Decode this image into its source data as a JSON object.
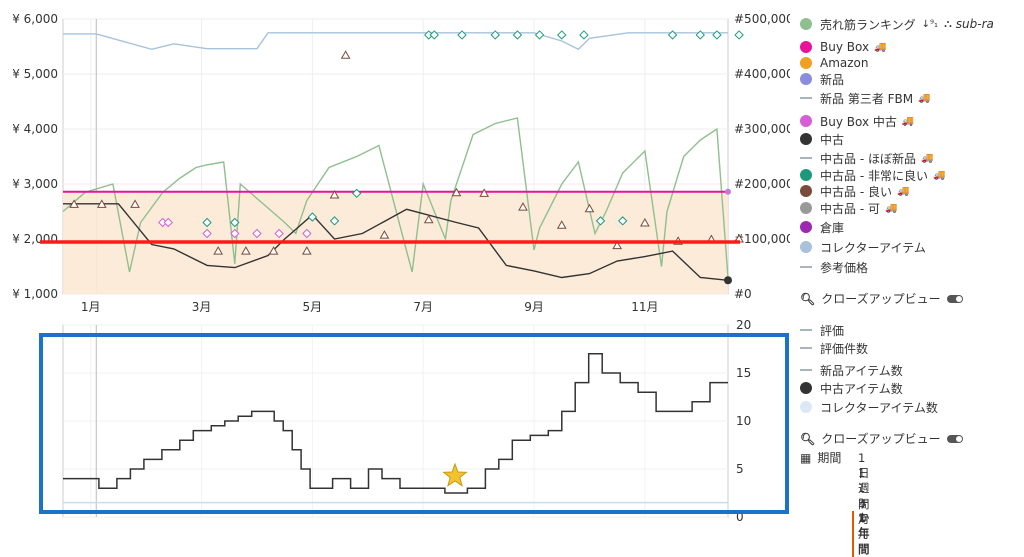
{
  "chart_data": [
    {
      "type": "line",
      "left_axis_ticks": [
        "¥ 1,000",
        "¥ 2,000",
        "¥ 3,000",
        "¥ 4,000",
        "¥ 5,000",
        "¥ 6,000"
      ],
      "right_axis_ticks": [
        "#0",
        "#100,000",
        "#200,000",
        "#300,000",
        "#400,000",
        "#500,000"
      ],
      "x_tick_labels": [
        "1月",
        "3月",
        "5月",
        "7月",
        "9月",
        "11月"
      ],
      "ylim_left": [
        1000,
        6000
      ],
      "ylim_right": [
        0,
        500000
      ],
      "series": [
        {
          "name": "売れ筋ランキング",
          "color": "#8fbf8f",
          "axis": "right",
          "points": [
            [
              0,
              150000
            ],
            [
              0.4,
              185000
            ],
            [
              0.9,
              200000
            ],
            [
              1.2,
              40000
            ],
            [
              1.4,
              130000
            ],
            [
              1.8,
              185000
            ],
            [
              2.1,
              210000
            ],
            [
              2.4,
              230000
            ],
            [
              2.6,
              235000
            ],
            [
              2.9,
              240000
            ],
            [
              3.1,
              55000
            ],
            [
              3.2,
              200000
            ],
            [
              4.0,
              130000
            ],
            [
              4.2,
              110000
            ],
            [
              4.4,
              170000
            ],
            [
              4.8,
              230000
            ],
            [
              5.3,
              250000
            ],
            [
              5.7,
              270000
            ],
            [
              6.3,
              40000
            ],
            [
              6.5,
              200000
            ],
            [
              6.9,
              100000
            ],
            [
              7.0,
              170000
            ],
            [
              7.4,
              290000
            ],
            [
              7.8,
              310000
            ],
            [
              8.2,
              320000
            ],
            [
              8.5,
              80000
            ],
            [
              8.6,
              120000
            ],
            [
              9.0,
              200000
            ],
            [
              9.3,
              240000
            ],
            [
              9.6,
              110000
            ],
            [
              9.8,
              150000
            ],
            [
              10.1,
              220000
            ],
            [
              10.5,
              260000
            ],
            [
              10.8,
              50000
            ],
            [
              10.9,
              150000
            ],
            [
              11.2,
              250000
            ],
            [
              11.5,
              280000
            ],
            [
              11.8,
              300000
            ],
            [
              12.0,
              30000
            ]
          ]
        },
        {
          "name": "Buy Box",
          "color": "#e6149b",
          "axis": "left",
          "points": [
            [
              0,
              2860
            ],
            [
              12,
              2860
            ]
          ]
        },
        {
          "name": "中古",
          "color": "#333333",
          "axis": "left",
          "points": [
            [
              0,
              2640
            ],
            [
              1.0,
              2640
            ],
            [
              1.6,
              1900
            ],
            [
              2.0,
              1820
            ],
            [
              2.6,
              1520
            ],
            [
              3.1,
              1480
            ],
            [
              3.7,
              1700
            ],
            [
              4.0,
              2000
            ],
            [
              4.5,
              2440
            ],
            [
              4.9,
              2000
            ],
            [
              5.4,
              2100
            ],
            [
              6.2,
              2540
            ],
            [
              7.1,
              2300
            ],
            [
              7.5,
              2200
            ],
            [
              8.0,
              1520
            ],
            [
              8.5,
              1420
            ],
            [
              9.0,
              1300
            ],
            [
              9.5,
              1370
            ],
            [
              10.0,
              1600
            ],
            [
              10.5,
              1680
            ],
            [
              11.0,
              1780
            ],
            [
              11.5,
              1300
            ],
            [
              12.0,
              1250
            ]
          ]
        },
        {
          "name": "コレクターアイテム",
          "color": "#a8c2dc",
          "axis": "right",
          "points": [
            [
              0,
              473000
            ],
            [
              0.6,
              473000
            ],
            [
              1.6,
              445000
            ],
            [
              2.0,
              455000
            ],
            [
              2.6,
              446000
            ],
            [
              3.5,
              446000
            ],
            [
              3.7,
              475000
            ],
            [
              5.2,
              475000
            ],
            [
              6.5,
              475000
            ],
            [
              7.5,
              475000
            ],
            [
              8.5,
              475000
            ],
            [
              9.0,
              460000
            ],
            [
              9.3,
              445000
            ],
            [
              9.5,
              465000
            ],
            [
              10.2,
              475000
            ],
            [
              12.0,
              475000
            ]
          ]
        }
      ],
      "markers": [
        {
          "name": "中古品 - 良い",
          "symbol": "triangle",
          "color": "#7a4a3a",
          "points": [
            [
              0.2,
              2630
            ],
            [
              0.7,
              2630
            ],
            [
              1.3,
              2630
            ],
            [
              2.8,
              1780
            ],
            [
              3.3,
              1780
            ],
            [
              3.8,
              1780
            ],
            [
              4.4,
              1780
            ],
            [
              4.9,
              2800
            ],
            [
              5.8,
              2070
            ],
            [
              6.6,
              2350
            ],
            [
              7.1,
              2840
            ],
            [
              7.6,
              2830
            ],
            [
              8.3,
              2580
            ],
            [
              9.0,
              2250
            ],
            [
              9.5,
              2550
            ],
            [
              10.0,
              1880
            ],
            [
              10.5,
              2290
            ],
            [
              11.1,
              1960
            ],
            [
              11.7,
              1990
            ],
            [
              12.2,
              2000
            ],
            [
              5.1,
              5340
            ]
          ]
        },
        {
          "name": "Buy Box 中古",
          "symbol": "diamond",
          "color": "#d55fd5",
          "points": [
            [
              1.8,
              2300
            ],
            [
              1.9,
              2300
            ],
            [
              2.6,
              2100
            ],
            [
              3.1,
              2100
            ],
            [
              3.5,
              2100
            ],
            [
              3.9,
              2100
            ],
            [
              4.4,
              2100
            ]
          ]
        },
        {
          "name": "中古品 - 非常に良い",
          "symbol": "diamond",
          "color": "#1a9a7a",
          "points": [
            [
              2.6,
              2300
            ],
            [
              3.1,
              2300
            ],
            [
              4.5,
              2400
            ],
            [
              4.9,
              2330
            ],
            [
              5.3,
              2830
            ],
            [
              6.6,
              5710
            ],
            [
              6.7,
              5710
            ],
            [
              7.2,
              5710
            ],
            [
              7.8,
              5710
            ],
            [
              8.2,
              5710
            ],
            [
              8.6,
              5710
            ],
            [
              9.0,
              5710
            ],
            [
              9.4,
              5710
            ],
            [
              9.7,
              2330
            ],
            [
              10.1,
              2330
            ],
            [
              11.0,
              5710
            ],
            [
              11.5,
              5710
            ],
            [
              11.8,
              5710
            ],
            [
              12.2,
              5710
            ]
          ]
        }
      ]
    },
    {
      "type": "line",
      "right_axis_ticks": [
        "0",
        "5",
        "10",
        "15",
        "20"
      ],
      "ylim": [
        0,
        20
      ],
      "series": [
        {
          "name": "中古アイテム数",
          "color": "#333333",
          "points": [
            [
              0,
              4
            ],
            [
              0.6,
              4
            ],
            [
              0.8,
              3
            ],
            [
              1.2,
              4
            ],
            [
              1.5,
              5
            ],
            [
              1.8,
              6
            ],
            [
              2.2,
              7
            ],
            [
              2.6,
              8
            ],
            [
              2.9,
              9
            ],
            [
              3.3,
              9.5
            ],
            [
              3.6,
              10
            ],
            [
              3.9,
              10.5
            ],
            [
              4.2,
              11
            ],
            [
              4.7,
              10
            ],
            [
              4.9,
              9
            ],
            [
              5.1,
              7
            ],
            [
              5.3,
              5
            ],
            [
              5.5,
              3
            ],
            [
              6.0,
              4
            ],
            [
              6.4,
              3
            ],
            [
              6.8,
              5
            ],
            [
              7.1,
              4
            ],
            [
              7.5,
              3
            ],
            [
              8.0,
              3
            ],
            [
              8.5,
              2.5
            ],
            [
              9.0,
              3
            ],
            [
              9.4,
              5
            ],
            [
              9.7,
              6
            ],
            [
              10.0,
              8
            ],
            [
              10.4,
              8.5
            ],
            [
              10.8,
              9
            ],
            [
              11.1,
              11
            ],
            [
              11.4,
              14
            ],
            [
              11.7,
              17
            ],
            [
              12.0,
              15
            ],
            [
              12.4,
              14
            ],
            [
              12.8,
              13
            ],
            [
              13.2,
              11
            ],
            [
              13.6,
              11
            ],
            [
              14.0,
              12
            ],
            [
              14.4,
              14
            ],
            [
              14.8,
              14
            ]
          ]
        },
        {
          "name": "コレクターアイテム数",
          "color": "#c8dcf0",
          "points": [
            [
              0,
              1.5
            ],
            [
              12,
              1.5
            ]
          ]
        }
      ],
      "annotations": [
        "star"
      ]
    }
  ],
  "legend_main": [
    {
      "label": "売れ筋ランキング",
      "icon": "sort-icon",
      "extra": "sub-ra",
      "marker": "dot",
      "color": "#8fbf8f"
    },
    {
      "label": "Buy Box",
      "marker": "dot",
      "color": "#e6149b",
      "truck": true
    },
    {
      "label": "Amazon",
      "marker": "dot",
      "color": "#f0a020"
    },
    {
      "label": "新品",
      "marker": "dot",
      "color": "#8c8cdc"
    },
    {
      "label": "新品 第三者 FBM",
      "marker": "dash",
      "color": "#a8b4c0",
      "truck": true
    },
    {
      "label": "Buy Box 中古",
      "marker": "dot",
      "color": "#d55fd5",
      "truck": true
    },
    {
      "label": "中古",
      "marker": "dot",
      "color": "#333333"
    },
    {
      "label": "中古品 - ほぼ新品",
      "marker": "dash",
      "color": "#a8b4c0",
      "truck": true
    },
    {
      "label": "中古品 - 非常に良い",
      "marker": "dot",
      "color": "#1a9a7a",
      "truck": true
    },
    {
      "label": "中古品 - 良い",
      "marker": "dot",
      "color": "#7a4a3a",
      "truck": true
    },
    {
      "label": "中古品 - 可",
      "marker": "dot",
      "color": "#999999",
      "truck": true
    },
    {
      "label": "倉庫",
      "marker": "dot",
      "color": "#9c27b0"
    },
    {
      "label": "コレクターアイテム",
      "marker": "dot",
      "color": "#a8c2dc"
    },
    {
      "label": "参考価格",
      "marker": "dash",
      "color": "#a8b4c0"
    }
  ],
  "legend_sub": [
    {
      "label": "評価",
      "marker": "dash",
      "color": "#a8b4c0"
    },
    {
      "label": "評価件数",
      "marker": "dash",
      "color": "#a8b4c0"
    },
    {
      "label": "新品アイテム数",
      "marker": "dash",
      "color": "#a8b4c0"
    },
    {
      "label": "中古アイテム数",
      "marker": "dot",
      "color": "#333333"
    },
    {
      "label": "コレクターアイテム数",
      "marker": "dot",
      "color": "#dce8f8"
    }
  ],
  "controls": {
    "closeup_label": "クローズアップビュー",
    "period_label": "期間",
    "ranges": [
      "1日",
      "1週間",
      "1ヶ月",
      "3か月",
      "1年間"
    ],
    "selected_range": "1年間"
  }
}
